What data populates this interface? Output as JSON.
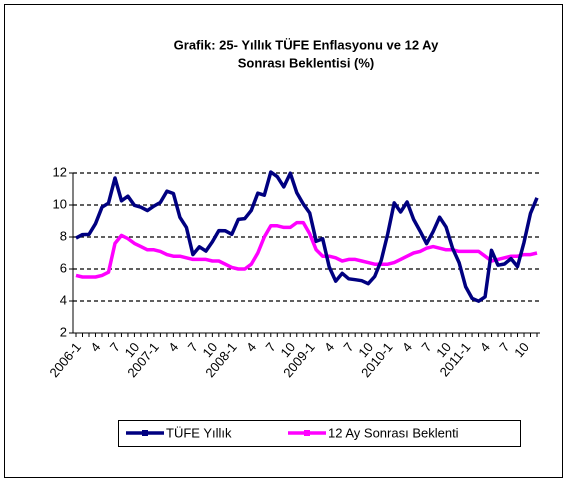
{
  "chart_data": {
    "type": "line",
    "title": [
      "Grafik: 25- Yıllık TÜFE Enflasyonu ve 12 Ay",
      "Sonrası Beklentisi (%)"
    ],
    "categories": [
      "2006-1",
      null,
      null,
      "4",
      null,
      null,
      "7",
      null,
      null,
      "10",
      null,
      null,
      "2007-1",
      null,
      null,
      "4",
      null,
      null,
      "7",
      null,
      null,
      "10",
      null,
      null,
      "2008-1",
      null,
      null,
      "4",
      null,
      null,
      "7",
      null,
      null,
      "10",
      null,
      null,
      "2009-1",
      null,
      null,
      "4",
      null,
      null,
      "7",
      null,
      null,
      "10",
      null,
      null,
      "2010-1",
      null,
      null,
      "4",
      null,
      null,
      "7",
      null,
      null,
      "10",
      null,
      null,
      "2011-1",
      null,
      null,
      "4",
      null,
      null,
      "7",
      null,
      null,
      "10",
      null,
      null
    ],
    "series": [
      {
        "name": "TÜFE Yıllık",
        "color": "#000080",
        "values": [
          7.93,
          8.15,
          8.16,
          8.83,
          9.86,
          10.12,
          11.69,
          10.26,
          10.55,
          9.98,
          9.86,
          9.65,
          9.93,
          10.16,
          10.86,
          10.72,
          9.23,
          8.6,
          6.9,
          7.39,
          7.12,
          7.7,
          8.4,
          8.39,
          8.17,
          9.1,
          9.15,
          9.66,
          10.74,
          10.61,
          12.06,
          11.77,
          11.13,
          11.99,
          10.76,
          10.06,
          9.5,
          7.73,
          7.89,
          6.13,
          5.24,
          5.73,
          5.39,
          5.33,
          5.27,
          5.08,
          5.53,
          6.53,
          8.19,
          10.13,
          9.56,
          10.19,
          9.1,
          8.37,
          7.58,
          8.33,
          9.24,
          8.62,
          7.29,
          6.4,
          4.9,
          4.16,
          3.99,
          4.26,
          7.17,
          6.24,
          6.31,
          6.65,
          6.15,
          7.66,
          9.48,
          10.45
        ]
      },
      {
        "name": "12 Ay Sonrası Beklenti",
        "color": "#ff00ff",
        "values": [
          5.6,
          5.5,
          5.5,
          5.5,
          5.6,
          5.8,
          7.6,
          8.1,
          7.9,
          7.6,
          7.4,
          7.2,
          7.2,
          7.1,
          6.9,
          6.8,
          6.8,
          6.7,
          6.6,
          6.6,
          6.6,
          6.5,
          6.5,
          6.3,
          6.1,
          6.0,
          6.0,
          6.3,
          7.0,
          8.0,
          8.7,
          8.7,
          8.6,
          8.6,
          8.9,
          8.9,
          8.2,
          7.2,
          6.8,
          6.8,
          6.7,
          6.5,
          6.6,
          6.6,
          6.5,
          6.4,
          6.3,
          6.3,
          6.3,
          6.4,
          6.6,
          6.8,
          7.0,
          7.1,
          7.3,
          7.4,
          7.3,
          7.2,
          7.2,
          7.1,
          7.1,
          7.1,
          7.1,
          6.8,
          6.5,
          6.6,
          6.7,
          6.8,
          6.8,
          6.9,
          6.9,
          7.0
        ]
      }
    ],
    "ylim": [
      2,
      12
    ],
    "yticks": [
      2,
      4,
      6,
      8,
      10,
      12
    ],
    "grid": true
  }
}
